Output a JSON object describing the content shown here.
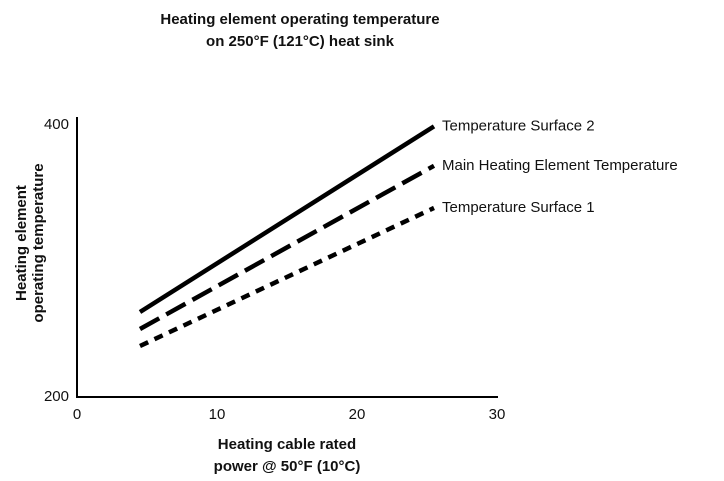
{
  "chart_data": {
    "type": "line",
    "title": [
      "Heating element operating temperature",
      "on 250°F (121°C) heat sink"
    ],
    "xlabel": [
      "Heating cable rated",
      "power @ 50°F (10°C)"
    ],
    "ylabel": [
      "Heating element",
      "operating temperature"
    ],
    "x": [
      4.5,
      25.5
    ],
    "series": [
      {
        "name": "Temperature Surface 2",
        "color": "#000000",
        "dash": "solid",
        "values": [
          262.5,
          399
        ]
      },
      {
        "name": "Main Heating Element Temperature",
        "color": "#000000",
        "dash": "dashed",
        "values": [
          250,
          370
        ]
      },
      {
        "name": "Temperature Surface 1",
        "color": "#000000",
        "dash": "dotted",
        "values": [
          237.5,
          339
        ]
      }
    ],
    "xlim": [
      0,
      30
    ],
    "xticks": [
      0,
      10,
      20,
      30
    ],
    "ylim": [
      200,
      400
    ],
    "yticks": [
      200,
      400
    ],
    "grid": false
  }
}
